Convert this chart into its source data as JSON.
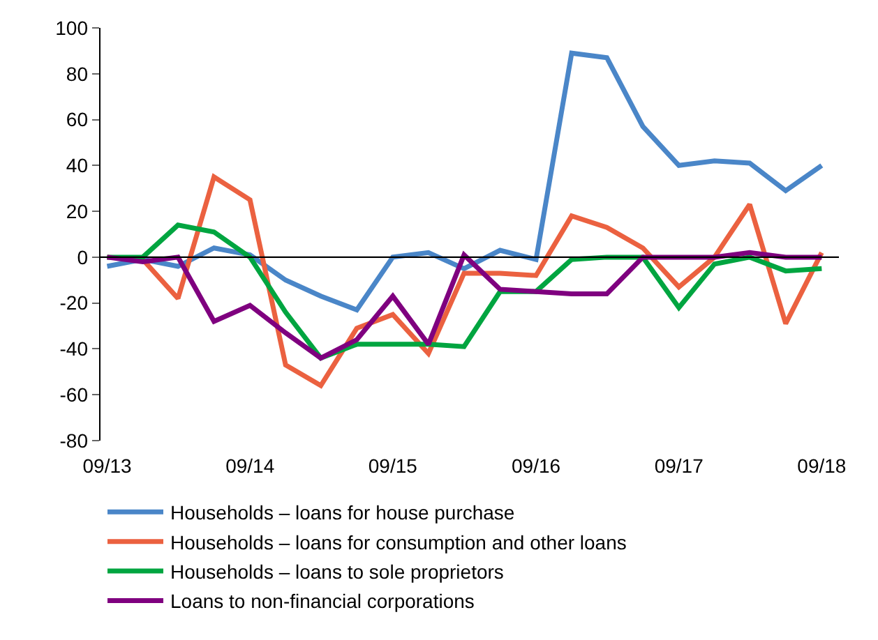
{
  "chart_data": {
    "type": "line",
    "x": [
      "2013-09",
      "2013-12",
      "2014-03",
      "2014-06",
      "2014-09",
      "2014-12",
      "2015-03",
      "2015-06",
      "2015-09",
      "2015-12",
      "2016-03",
      "2016-06",
      "2016-09",
      "2016-12",
      "2017-03",
      "2017-06",
      "2017-09",
      "2017-12",
      "2018-03",
      "2018-06",
      "2018-09"
    ],
    "xlim": [
      "2013-08-15",
      "2018-10-15"
    ],
    "xticks": [
      {
        "value": "2013-09",
        "label": "09/13"
      },
      {
        "value": "2014-09",
        "label": "09/14"
      },
      {
        "value": "2015-09",
        "label": "09/15"
      },
      {
        "value": "2016-09",
        "label": "09/16"
      },
      {
        "value": "2017-09",
        "label": "09/17"
      },
      {
        "value": "2018-09",
        "label": "09/18"
      }
    ],
    "ylim": [
      -80,
      100
    ],
    "yticks": [
      -80,
      -60,
      -40,
      -20,
      0,
      20,
      40,
      60,
      80,
      100
    ],
    "grid": false,
    "legend": "bottom",
    "marker": "none",
    "line_style": "solid",
    "ref_lines": [
      {
        "axis": "y",
        "value": 0,
        "color": "#000000"
      }
    ],
    "series": [
      {
        "name": "Households – loans for house purchase",
        "color": "#4a86c8",
        "values": [
          -4,
          -1,
          -4,
          4,
          1,
          -10,
          -17,
          -23,
          0,
          2,
          -5,
          3,
          -1,
          89,
          87,
          57,
          40,
          42,
          41,
          29,
          40
        ]
      },
      {
        "name": "Households – loans for consumption and other loans",
        "color": "#eb6140",
        "values": [
          0,
          -1,
          -18,
          35,
          25,
          -47,
          -56,
          -31,
          -25,
          -42,
          -7,
          -7,
          -8,
          18,
          13,
          4,
          -13,
          0,
          23,
          -29,
          2
        ]
      },
      {
        "name": "Households – loans to sole proprietors",
        "color": "#00a540",
        "values": [
          0,
          0,
          14,
          11,
          0,
          -24,
          -44,
          -38,
          -38,
          -38,
          -39,
          -15,
          -15,
          -1,
          0,
          0,
          -22,
          -3,
          0,
          -6,
          -5
        ]
      },
      {
        "name": "Loans to non-financial corporations",
        "color": "#7f007f",
        "values": [
          0,
          -2,
          0,
          -28,
          -21,
          -33,
          -44,
          -36,
          -17,
          -38,
          1,
          -14,
          -15,
          -16,
          -16,
          0,
          0,
          0,
          2,
          0,
          0
        ]
      }
    ]
  }
}
